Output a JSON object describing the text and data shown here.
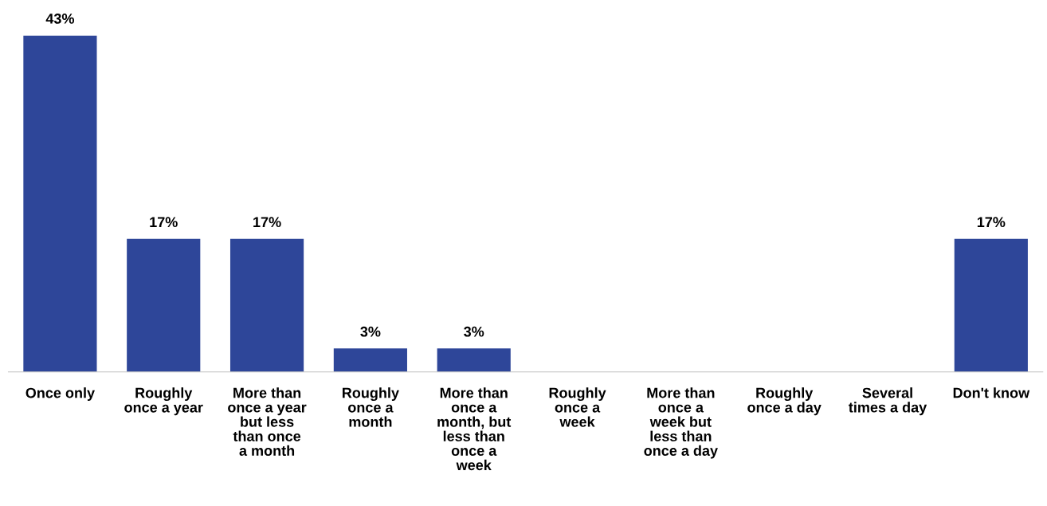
{
  "chart_data": {
    "type": "bar",
    "categories": [
      "Once only",
      "Roughly\nonce a year",
      "More than\nonce a year\nbut less\nthan once\na month",
      "Roughly\nonce a\nmonth",
      "More than\nonce a\nmonth, but\nless than\nonce a\nweek",
      "Roughly\nonce a\nweek",
      "More than\nonce a\nweek but\nless than\nonce a day",
      "Roughly\nonce a day",
      "Several\ntimes a day",
      "Don't know"
    ],
    "values": [
      43,
      17,
      17,
      3,
      3,
      0,
      0,
      0,
      0,
      17
    ],
    "value_labels": [
      "43%",
      "17%",
      "17%",
      "3%",
      "3%",
      null,
      null,
      null,
      null,
      "17%"
    ],
    "color": "#2e4699",
    "tick_labels": "x",
    "grid": false,
    "legend": false
  }
}
